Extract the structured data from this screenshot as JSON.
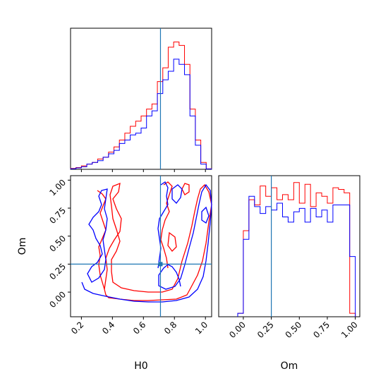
{
  "chart_data": {
    "type": "corner",
    "truth": {
      "H0": 0.71,
      "Om": 0.25
    },
    "colors": {
      "red": "#ff0000",
      "blue": "#0000ff",
      "truth": "#1f77b4"
    },
    "panels": [
      {
        "id": "hist_H0",
        "type": "step-histogram",
        "parameter": "H0",
        "xlim": [
          0.13,
          1.04
        ],
        "bin_edges": [
          0.13,
          0.165,
          0.2,
          0.235,
          0.27,
          0.305,
          0.34,
          0.375,
          0.41,
          0.445,
          0.48,
          0.515,
          0.55,
          0.585,
          0.62,
          0.655,
          0.69,
          0.725,
          0.76,
          0.795,
          0.83,
          0.865,
          0.9,
          0.935,
          0.97,
          1.005,
          1.04
        ],
        "series": [
          {
            "name": "",
            "color": "#ff0000",
            "values": [
              0.5,
              1,
              2,
              3,
              4,
              6,
              7,
              10,
              13,
              17,
              21,
              25,
              28,
              31,
              35,
              38,
              51,
              59,
              71,
              74,
              72,
              61,
              35,
              17,
              4,
              0.3
            ]
          },
          {
            "name": "",
            "color": "#0000ff",
            "values": [
              0.3,
              0.8,
              1.5,
              3,
              4,
              5,
              7,
              9,
              11,
              15,
              17,
              20,
              21,
              24,
              31,
              34,
              44,
              52,
              57,
              64,
              61,
              55,
              31,
              14,
              3,
              0.2
            ]
          }
        ]
      },
      {
        "id": "contour_H0_Om",
        "type": "contour",
        "xlabel": "H0",
        "ylabel": "Om",
        "xlim": [
          0.13,
          1.04
        ],
        "ylim": [
          -0.22,
          1.04
        ],
        "xticks": [
          "0.2",
          "0.4",
          "0.6",
          "0.8",
          "1.0"
        ],
        "yticks": [
          "0.00",
          "0.25",
          "0.50",
          "0.75",
          "1.00"
        ]
      },
      {
        "id": "hist_Om",
        "type": "step-histogram",
        "parameter": "Om",
        "xlabel": "Om",
        "xlim": [
          -0.22,
          1.04
        ],
        "xticks": [
          "0.00",
          "0.25",
          "0.50",
          "0.75",
          "1.00"
        ],
        "bin_edges": [
          -0.05,
          0.0,
          0.05,
          0.1,
          0.15,
          0.2,
          0.25,
          0.3,
          0.35,
          0.4,
          0.45,
          0.5,
          0.55,
          0.6,
          0.65,
          0.7,
          0.75,
          0.8,
          0.85,
          0.9,
          0.95,
          1.0
        ],
        "series": [
          {
            "name": "",
            "color": "#ff0000",
            "values": [
              2,
              50,
              68,
              65,
              76,
              70,
              75,
              68,
              71,
              68,
              78,
              66,
              77,
              64,
              72,
              70,
              66,
              75,
              74,
              72,
              2
            ]
          },
          {
            "name": "",
            "color": "#0000ff",
            "values": [
              2,
              45,
              70,
              64,
              60,
              64,
              62,
              66,
              58,
              55,
              61,
              63,
              55,
              63,
              58,
              62,
              55,
              65,
              65,
              65,
              35
            ]
          }
        ]
      }
    ]
  }
}
